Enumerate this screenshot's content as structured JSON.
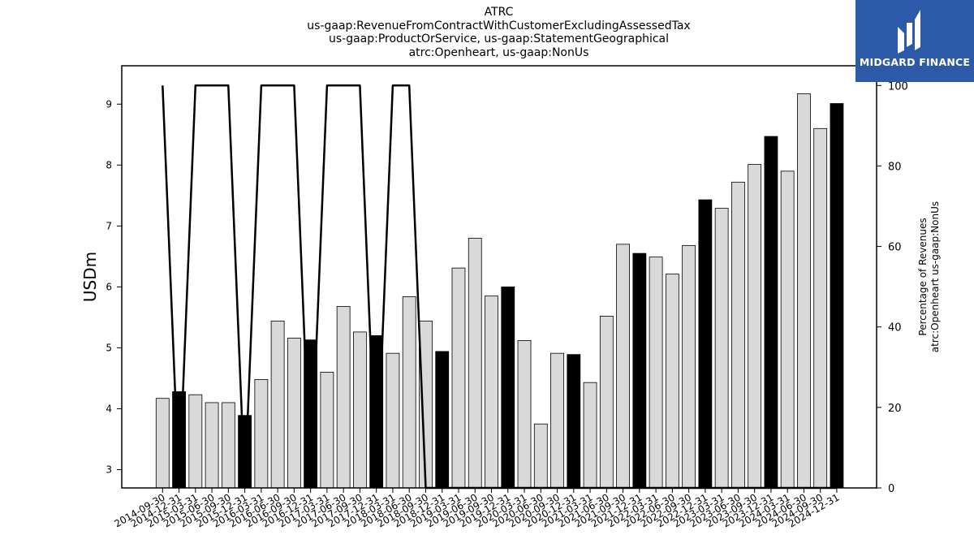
{
  "chart_data": {
    "type": "bar",
    "title": [
      "ATRC",
      "us-gaap:RevenueFromContractWithCustomerExcludingAssessedTax",
      "us-gaap:ProductOrService, us-gaap:StatementGeographical",
      "atrc:Openheart, us-gaap:NonUs"
    ],
    "ylabel": "USDm",
    "y2label": [
      "Percentage of Revenues",
      "atrc:Openheart us-gaap:NonUs"
    ],
    "ylim": [
      2.7,
      9.63
    ],
    "y2lim": [
      0,
      104.9
    ],
    "yticks": [
      "3",
      "4",
      "5",
      "6",
      "7",
      "8",
      "9"
    ],
    "y2ticks": [
      "0",
      "20",
      "40",
      "60",
      "80",
      "100"
    ],
    "grid": false,
    "categories": [
      "2014-09-30",
      "2014-12-31",
      "2015-03-31",
      "2015-06-30",
      "2015-09-30",
      "2015-12-31",
      "2016-03-31",
      "2016-06-30",
      "2016-09-30",
      "2016-12-31",
      "2017-03-31",
      "2017-06-30",
      "2017-09-30",
      "2017-12-31",
      "2018-03-31",
      "2018-06-30",
      "2018-09-30",
      "2018-12-31",
      "2019-03-31",
      "2019-06-30",
      "2019-09-30",
      "2019-12-31",
      "2020-03-31",
      "2020-06-30",
      "2020-09-30",
      "2020-12-31",
      "2021-03-31",
      "2021-06-30",
      "2021-09-30",
      "2021-12-31",
      "2022-03-31",
      "2022-06-30",
      "2022-09-30",
      "2022-12-31",
      "2023-03-31",
      "2023-06-30",
      "2023-09-30",
      "2023-12-31",
      "2024-03-31",
      "2024-06-30",
      "2024-09-30",
      "2024-12-31"
    ],
    "series": [
      {
        "type": "bar",
        "values": [
          4.17,
          4.28,
          4.23,
          4.1,
          4.1,
          3.89,
          4.48,
          5.44,
          5.16,
          5.13,
          4.6,
          5.68,
          5.26,
          5.2,
          4.91,
          5.84,
          5.44,
          4.94,
          6.31,
          6.8,
          5.85,
          6.0,
          5.12,
          3.75,
          4.91,
          4.89,
          4.43,
          5.52,
          6.7,
          6.55,
          6.49,
          6.21,
          6.68,
          7.43,
          7.29,
          7.72,
          8.01,
          8.47,
          7.9,
          9.17,
          8.6,
          9.01
        ],
        "colors": [
          "#d9d9d9",
          "#000000",
          "#d9d9d9",
          "#d9d9d9",
          "#d9d9d9",
          "#000000",
          "#d9d9d9",
          "#d9d9d9",
          "#d9d9d9",
          "#000000",
          "#d9d9d9",
          "#d9d9d9",
          "#d9d9d9",
          "#000000",
          "#d9d9d9",
          "#d9d9d9",
          "#d9d9d9",
          "#000000",
          "#d9d9d9",
          "#d9d9d9",
          "#d9d9d9",
          "#000000",
          "#d9d9d9",
          "#d9d9d9",
          "#d9d9d9",
          "#000000",
          "#d9d9d9",
          "#d9d9d9",
          "#d9d9d9",
          "#000000",
          "#d9d9d9",
          "#d9d9d9",
          "#d9d9d9",
          "#000000",
          "#d9d9d9",
          "#d9d9d9",
          "#d9d9d9",
          "#000000",
          "#d9d9d9",
          "#d9d9d9",
          "#d9d9d9",
          "#000000"
        ]
      },
      {
        "type": "line",
        "axis": "right",
        "color": "#000000",
        "values": [
          100,
          0,
          100,
          100,
          100,
          0,
          100,
          100,
          100,
          0,
          100,
          100,
          100,
          0,
          100,
          100,
          0,
          0,
          0,
          0,
          0,
          0,
          0,
          0,
          0,
          0,
          0,
          0,
          0,
          0,
          0,
          0,
          0,
          0,
          0,
          0,
          0,
          0,
          0,
          0,
          0,
          0
        ]
      }
    ]
  },
  "brand": {
    "name": "MIDGARD FINANCE",
    "background": "#2d5aa8",
    "text_color": "#ffffff"
  }
}
